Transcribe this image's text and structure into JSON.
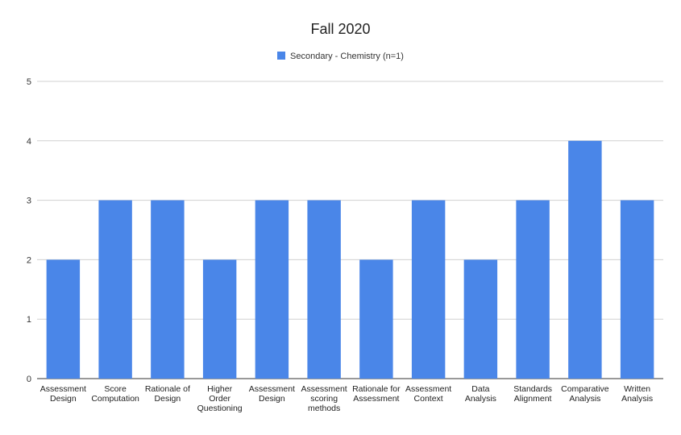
{
  "chart_data": {
    "type": "bar",
    "title": "Fall 2020",
    "xlabel": "",
    "ylabel": "",
    "ylim": [
      0,
      5
    ],
    "yticks": [
      "0",
      "1",
      "2",
      "3",
      "4",
      "5"
    ],
    "grid": true,
    "legend_position": "top",
    "bar_color": "#4a86e8",
    "categories": [
      "Assessment\nDesign",
      "Score\nComputation",
      "Rationale of\nDesign",
      "Higher\nOrder\nQuestioning",
      "Assessment\nDesign",
      "Assessment\nscoring\nmethods",
      "Rationale for\nAssessment",
      "Assessment\nContext",
      "Data\nAnalysis",
      "Standards\nAlignment",
      "Comparative\nAnalysis",
      "Written\nAnalysis"
    ],
    "series": [
      {
        "name": "Secondary - Chemistry (n=1)",
        "values": [
          2,
          3,
          3,
          2,
          3,
          3,
          2,
          3,
          2,
          3,
          4,
          3
        ]
      }
    ]
  }
}
